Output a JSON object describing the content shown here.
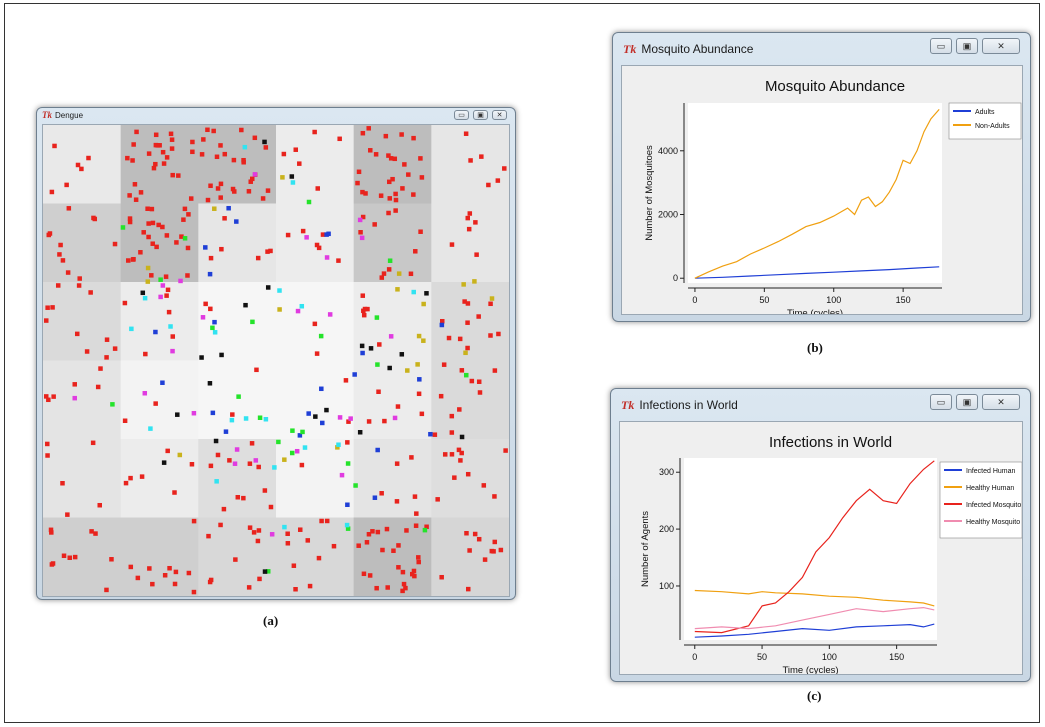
{
  "windows": {
    "dengue": {
      "app_icon": "tk-icon",
      "title": "Dengue",
      "caption": "(a)",
      "grid_cols": 6,
      "grid_rows": 6,
      "zone_shades": [
        [
          "#e9e9e9",
          "#bdbdbd",
          "#bdbdbd",
          "#ececec",
          "#bdbdbd",
          "#e6e6e6"
        ],
        [
          "#cfcfcf",
          "#bdbdbd",
          "#e6e6e6",
          "#ececec",
          "#c8c8c8",
          "#e6e6e6"
        ],
        [
          "#dadada",
          "#ececec",
          "#f6f6f6",
          "#f6f6f6",
          "#ececec",
          "#dadada"
        ],
        [
          "#e4e4e4",
          "#f3f3f3",
          "#f6f6f6",
          "#f6f6f6",
          "#ececec",
          "#dadada"
        ],
        [
          "#e4e4e4",
          "#ececec",
          "#dedede",
          "#f3f3f3",
          "#e4e4e4",
          "#dedede"
        ],
        [
          "#cfcfcf",
          "#cfcfcf",
          "#d8d8d8",
          "#d8d8d8",
          "#bdbdbd",
          "#d6d6d6"
        ]
      ],
      "agent_colors": {
        "red": "#e8231d",
        "blue": "#1f3fd6",
        "cyan": "#31e3f1",
        "magenta": "#e03be0",
        "green": "#24e32a",
        "yellow": "#c9b21c",
        "black": "#111111"
      }
    },
    "mosquito": {
      "app_icon": "tk-icon",
      "title": "Mosquito Abundance",
      "caption": "(b)"
    },
    "infections": {
      "app_icon": "tk-icon",
      "title": "Infections in World",
      "caption": "(c)"
    }
  },
  "chart_data": [
    {
      "type": "line",
      "title": "Mosquito Abundance",
      "xlabel": "Time (cycles)",
      "ylabel": "Number of Mosquitoes",
      "xlim": [
        -5,
        178
      ],
      "ylim": [
        -150,
        5500
      ],
      "xticks": [
        0,
        50,
        100,
        150
      ],
      "yticks": [
        0,
        2000,
        4000
      ],
      "legend_position": "right",
      "series": [
        {
          "name": "Adults",
          "color": "#1f3fd6",
          "x": [
            0,
            20,
            40,
            60,
            80,
            100,
            120,
            140,
            160,
            176
          ],
          "y": [
            0,
            30,
            70,
            110,
            150,
            190,
            230,
            270,
            320,
            360
          ]
        },
        {
          "name": "Non-Adults",
          "color": "#f0a010",
          "x": [
            0,
            10,
            20,
            30,
            40,
            50,
            60,
            70,
            80,
            90,
            100,
            110,
            115,
            120,
            125,
            130,
            135,
            140,
            145,
            150,
            155,
            160,
            165,
            170,
            176
          ],
          "y": [
            0,
            200,
            380,
            520,
            760,
            950,
            1150,
            1380,
            1620,
            1750,
            1950,
            2200,
            2000,
            2450,
            2550,
            2250,
            2400,
            2700,
            3100,
            3700,
            3600,
            4000,
            4600,
            5000,
            5300
          ]
        }
      ]
    },
    {
      "type": "line",
      "title": "Infections in World",
      "xlabel": "Time (cycles)",
      "ylabel": "Number of Agents",
      "xlim": [
        -8,
        180
      ],
      "ylim": [
        5,
        325
      ],
      "xticks": [
        0,
        50,
        100,
        150
      ],
      "yticks": [
        100,
        200,
        300
      ],
      "legend_position": "right",
      "series": [
        {
          "name": "Infected Human",
          "color": "#1f3fd6",
          "x": [
            0,
            20,
            40,
            60,
            80,
            100,
            120,
            140,
            160,
            170,
            178
          ],
          "y": [
            10,
            12,
            15,
            20,
            25,
            22,
            28,
            30,
            32,
            28,
            33
          ]
        },
        {
          "name": "Healthy Human",
          "color": "#f0a010",
          "x": [
            0,
            20,
            40,
            50,
            60,
            80,
            100,
            120,
            140,
            160,
            170,
            178
          ],
          "y": [
            92,
            90,
            86,
            90,
            88,
            86,
            82,
            80,
            75,
            72,
            70,
            65
          ]
        },
        {
          "name": "Infected Mosquito",
          "color": "#e8231d",
          "x": [
            0,
            20,
            40,
            50,
            60,
            70,
            80,
            90,
            100,
            110,
            120,
            130,
            140,
            150,
            160,
            170,
            178
          ],
          "y": [
            20,
            18,
            30,
            65,
            70,
            90,
            115,
            160,
            185,
            220,
            250,
            270,
            250,
            245,
            280,
            305,
            320
          ]
        },
        {
          "name": "Healthy Mosquito",
          "color": "#f08cb0",
          "x": [
            0,
            20,
            40,
            60,
            80,
            100,
            120,
            140,
            160,
            170,
            178
          ],
          "y": [
            25,
            28,
            25,
            30,
            40,
            50,
            60,
            55,
            60,
            62,
            58
          ]
        }
      ]
    }
  ]
}
